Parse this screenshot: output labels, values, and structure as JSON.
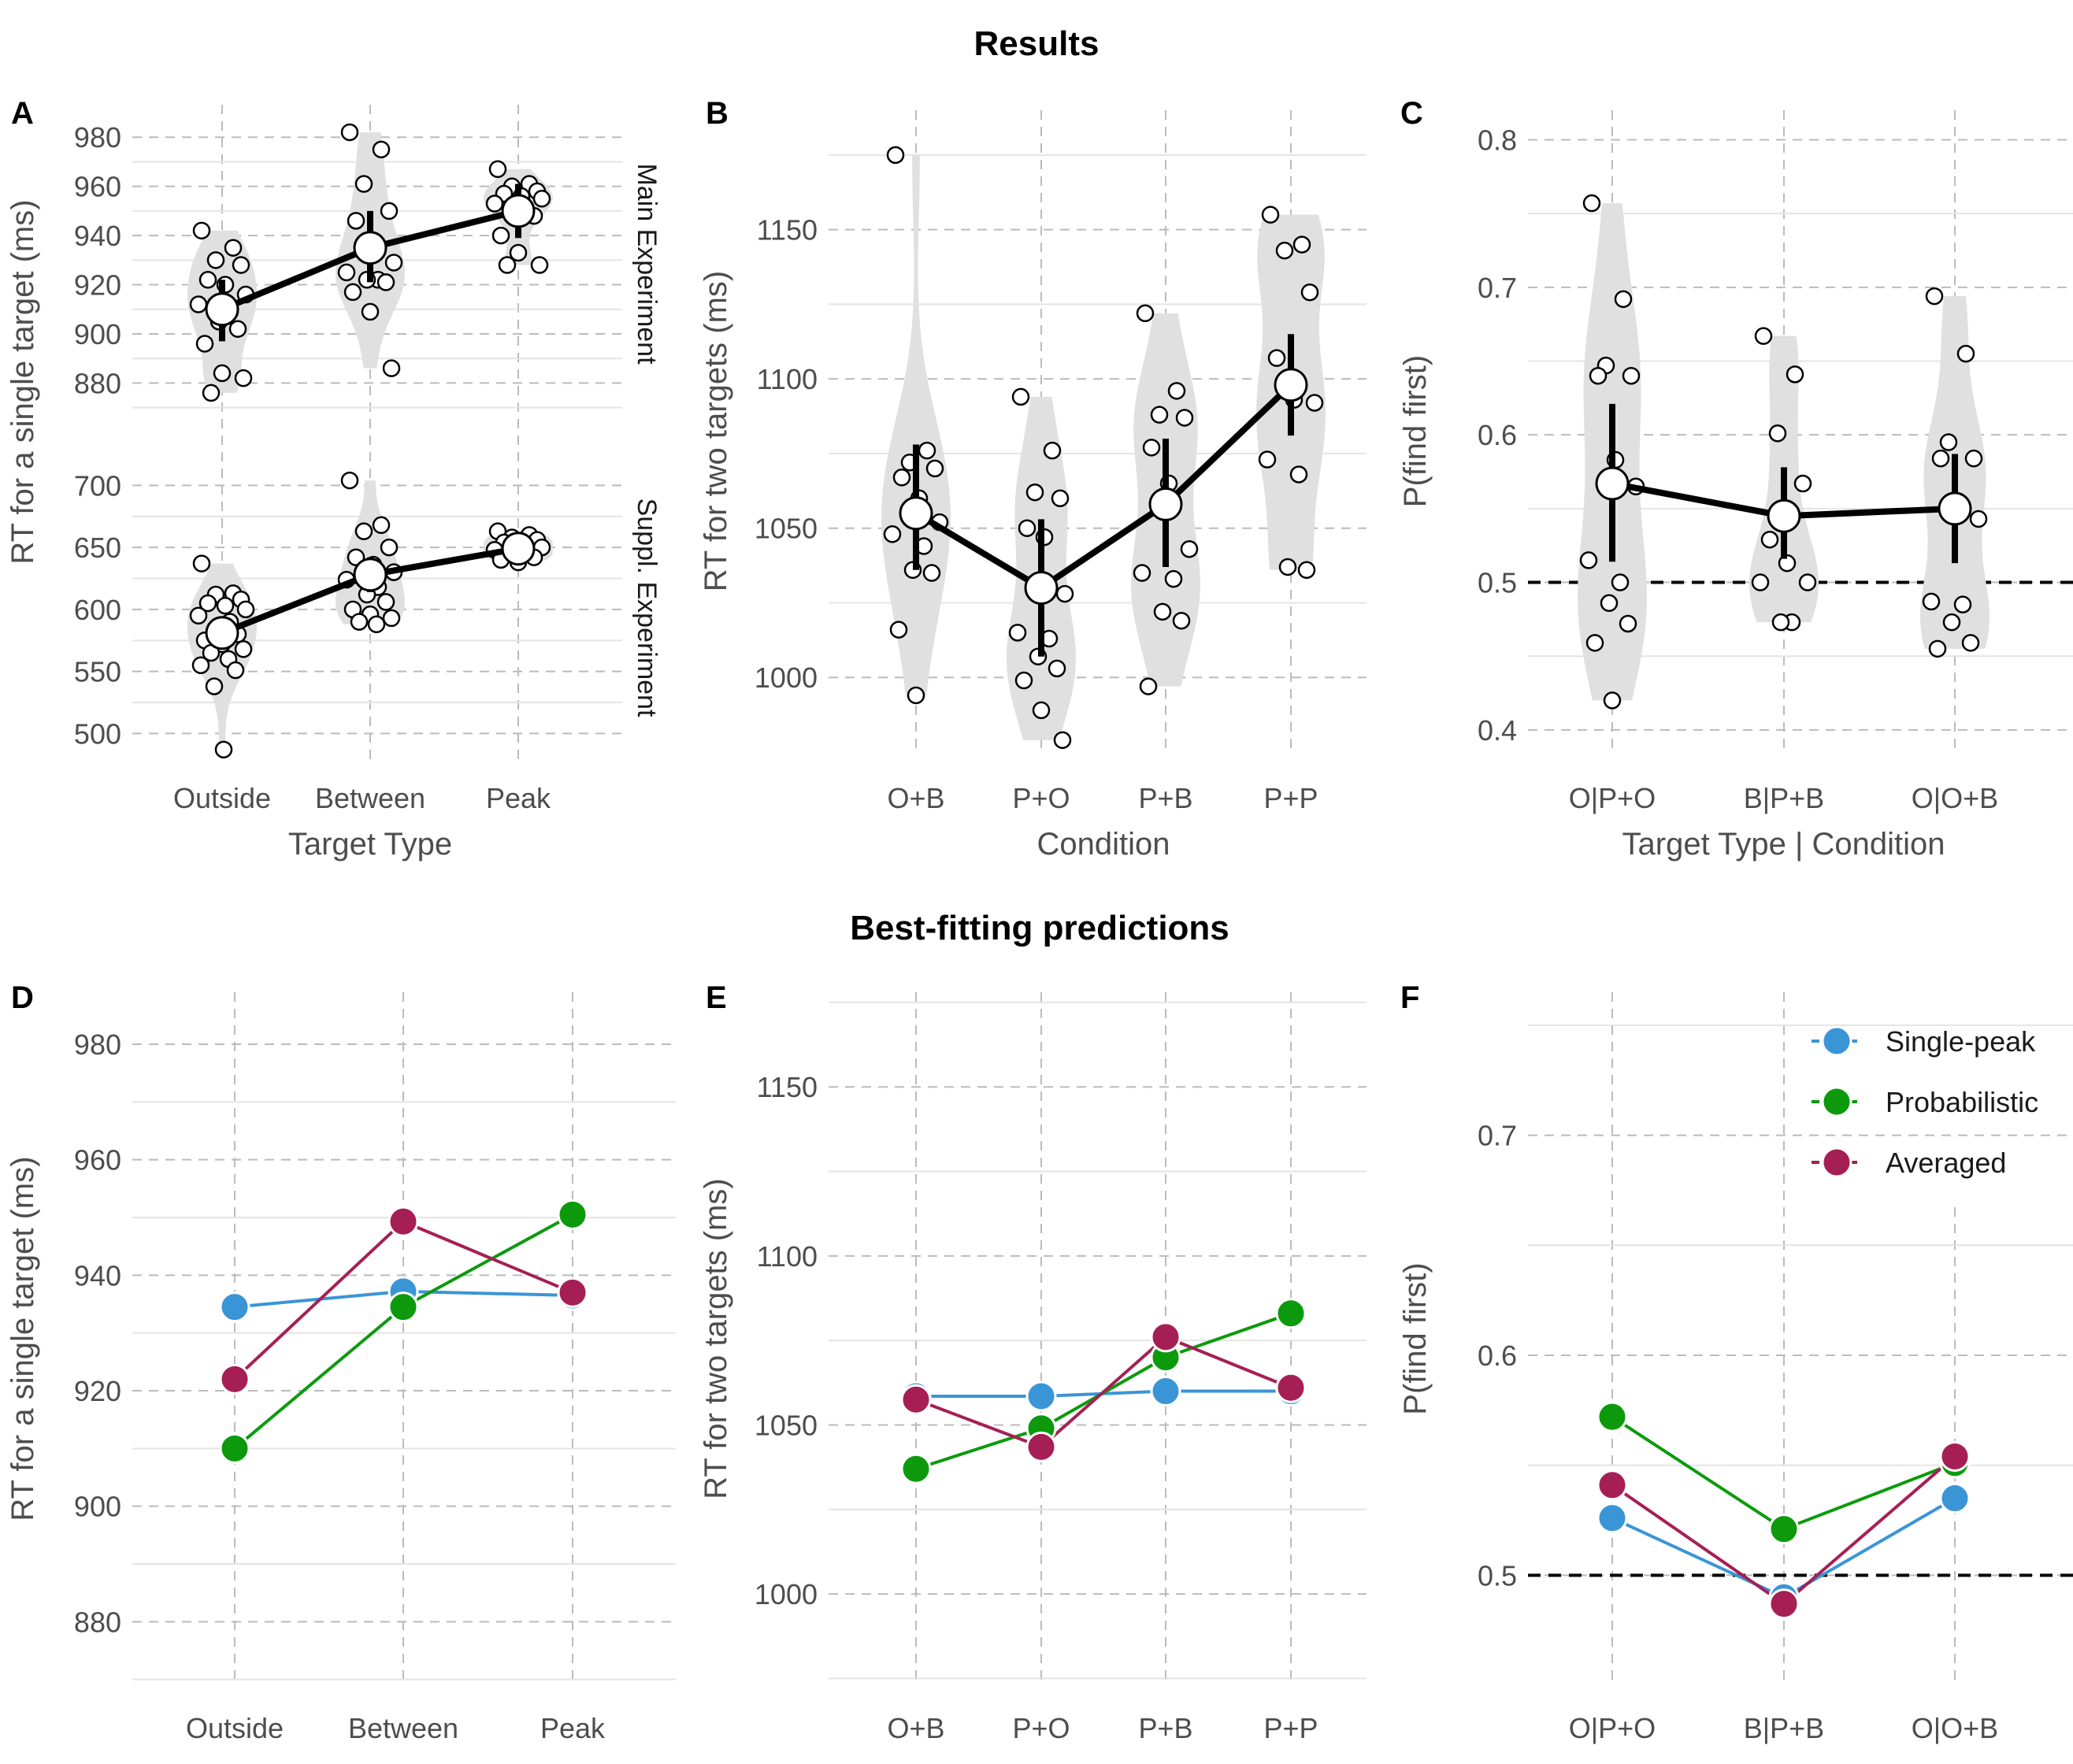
{
  "sections": {
    "results_title": "Results",
    "predictions_title": "Best-fitting predictions"
  },
  "colors": {
    "grid_major": "#bbbbbb",
    "grid_minor": "#e4e4e4",
    "violin": "#e0e0e0",
    "single_peak": "#3a95d6",
    "probabilistic": "#0c9a0c",
    "averaged": "#a51f55",
    "text": "#4d4d4d"
  },
  "chart_data": [
    {
      "panel": "A",
      "type": "scatter",
      "title": "",
      "xlabel": "Target Type",
      "ylabel": "RT for a single target (ms)",
      "categories": [
        "Outside",
        "Between",
        "Peak"
      ],
      "facets": [
        {
          "label": "Main Experiment",
          "ylim": [
            867,
            990
          ],
          "yticks": [
            880,
            900,
            920,
            940,
            960,
            980
          ],
          "means": [
            910,
            935,
            950
          ],
          "ci": [
            [
              897,
              922
            ],
            [
              921,
              950
            ],
            [
              939,
              961
            ]
          ],
          "points": [
            [
              942,
              935,
              930,
              928,
              922,
              920,
              916,
              912,
              909,
              905,
              902,
              896,
              884,
              882,
              876
            ],
            [
              982,
              975,
              961,
              950,
              946,
              935,
              929,
              925,
              922,
              922,
              921,
              917,
              909,
              886
            ],
            [
              967,
              961,
              960,
              958,
              957,
              956,
              955,
              953,
              950,
              949,
              948,
              940,
              933,
              928,
              928
            ]
          ]
        },
        {
          "label": "Suppl. Experiment",
          "ylim": [
            478,
            725
          ],
          "yticks": [
            500,
            550,
            600,
            650,
            700
          ],
          "means": [
            581,
            628,
            649
          ],
          "ci": [
            [
              568,
              594
            ],
            [
              614,
              642
            ],
            [
              640,
              658
            ]
          ],
          "points": [
            [
              637,
              613,
              612,
              608,
              605,
              603,
              600,
              595,
              590,
              585,
              580,
              575,
              572,
              568,
              565,
              560,
              555,
              551,
              538,
              487
            ],
            [
              704,
              668,
              663,
              650,
              642,
              636,
              630,
              624,
              618,
              612,
              606,
              600,
              596,
              593,
              590,
              588
            ],
            [
              663,
              660,
              658,
              656,
              654,
              652,
              650,
              648,
              646,
              644,
              642,
              640,
              638
            ]
          ]
        }
      ]
    },
    {
      "panel": "B",
      "type": "scatter",
      "title": "",
      "xlabel": "Condition",
      "ylabel": "RT for two targets (ms)",
      "categories": [
        "O+B",
        "P+O",
        "P+B",
        "P+P"
      ],
      "ylim": [
        975,
        1190
      ],
      "yticks": [
        1000,
        1050,
        1100,
        1150
      ],
      "means": [
        1055,
        1030,
        1058,
        1098
      ],
      "ci": [
        [
          1036,
          1078
        ],
        [
          1007,
          1053
        ],
        [
          1037,
          1080
        ],
        [
          1081,
          1115
        ]
      ],
      "points": [
        [
          1175,
          1076,
          1072,
          1070,
          1067,
          1060,
          1052,
          1048,
          1044,
          1036,
          1035,
          1016,
          994
        ],
        [
          1094,
          1076,
          1062,
          1060,
          1050,
          1047,
          1028,
          1015,
          1013,
          1007,
          1003,
          999,
          989,
          979
        ],
        [
          1122,
          1096,
          1088,
          1087,
          1077,
          1065,
          1043,
          1035,
          1033,
          1022,
          1019,
          997
        ],
        [
          1155,
          1145,
          1143,
          1129,
          1107,
          1093,
          1092,
          1073,
          1068,
          1037,
          1036
        ]
      ]
    },
    {
      "panel": "C",
      "type": "scatter",
      "title": "",
      "xlabel": "Target Type | Condition",
      "ylabel": "P(find first)",
      "categories": [
        "O|P+O",
        "B|P+B",
        "O|O+B"
      ],
      "ylim": [
        0.385,
        0.82
      ],
      "yticks": [
        0.4,
        0.5,
        0.6,
        0.7,
        0.8
      ],
      "reference_line": 0.5,
      "means": [
        0.567,
        0.545,
        0.55
      ],
      "ci": [
        [
          0.514,
          0.621
        ],
        [
          0.516,
          0.578
        ],
        [
          0.513,
          0.587
        ]
      ],
      "points": [
        [
          0.757,
          0.692,
          0.647,
          0.64,
          0.64,
          0.583,
          0.565,
          0.515,
          0.5,
          0.486,
          0.472,
          0.459,
          0.42
        ],
        [
          0.667,
          0.641,
          0.601,
          0.567,
          0.529,
          0.513,
          0.5,
          0.5,
          0.473,
          0.473
        ],
        [
          0.694,
          0.655,
          0.595,
          0.584,
          0.584,
          0.552,
          0.543,
          0.487,
          0.485,
          0.473,
          0.459,
          0.455
        ]
      ]
    },
    {
      "panel": "D",
      "type": "line",
      "title": "",
      "xlabel": "",
      "ylabel": "RT for a single target (ms)",
      "categories": [
        "Outside",
        "Between",
        "Peak"
      ],
      "ylim": [
        869,
        989
      ],
      "yticks": [
        880,
        900,
        920,
        940,
        960,
        980
      ],
      "series": [
        {
          "name": "Single-peak",
          "values": [
            934.5,
            937.2,
            936.5
          ]
        },
        {
          "name": "Probabilistic",
          "values": [
            910,
            934.5,
            950.5
          ]
        },
        {
          "name": "Averaged",
          "values": [
            922,
            949.3,
            937
          ]
        }
      ]
    },
    {
      "panel": "E",
      "type": "line",
      "title": "",
      "xlabel": "",
      "ylabel": "RT for two targets (ms)",
      "categories": [
        "O+B",
        "P+O",
        "P+B",
        "P+P"
      ],
      "ylim": [
        973,
        1178
      ],
      "yticks": [
        1000,
        1050,
        1100,
        1150
      ],
      "series": [
        {
          "name": "Single-peak",
          "values": [
            1058.5,
            1058.5,
            1060,
            1060
          ]
        },
        {
          "name": "Probabilistic",
          "values": [
            1037,
            1049,
            1070,
            1083
          ]
        },
        {
          "name": "Averaged",
          "values": [
            1057.5,
            1043.5,
            1076,
            1061
          ]
        }
      ]
    },
    {
      "panel": "F",
      "type": "line",
      "title": "",
      "xlabel": "",
      "ylabel": "P(find first)",
      "categories": [
        "O|P+O",
        "B|P+B",
        "O|O+B"
      ],
      "ylim": [
        0.45,
        0.765
      ],
      "yticks": [
        0.5,
        0.6,
        0.7
      ],
      "reference_line": 0.5,
      "legend": "top-right",
      "series": [
        {
          "name": "Single-peak",
          "values": [
            0.526,
            0.49,
            0.535
          ]
        },
        {
          "name": "Probabilistic",
          "values": [
            0.572,
            0.521,
            0.551
          ]
        },
        {
          "name": "Averaged",
          "values": [
            0.541,
            0.487,
            0.554
          ]
        }
      ]
    }
  ]
}
